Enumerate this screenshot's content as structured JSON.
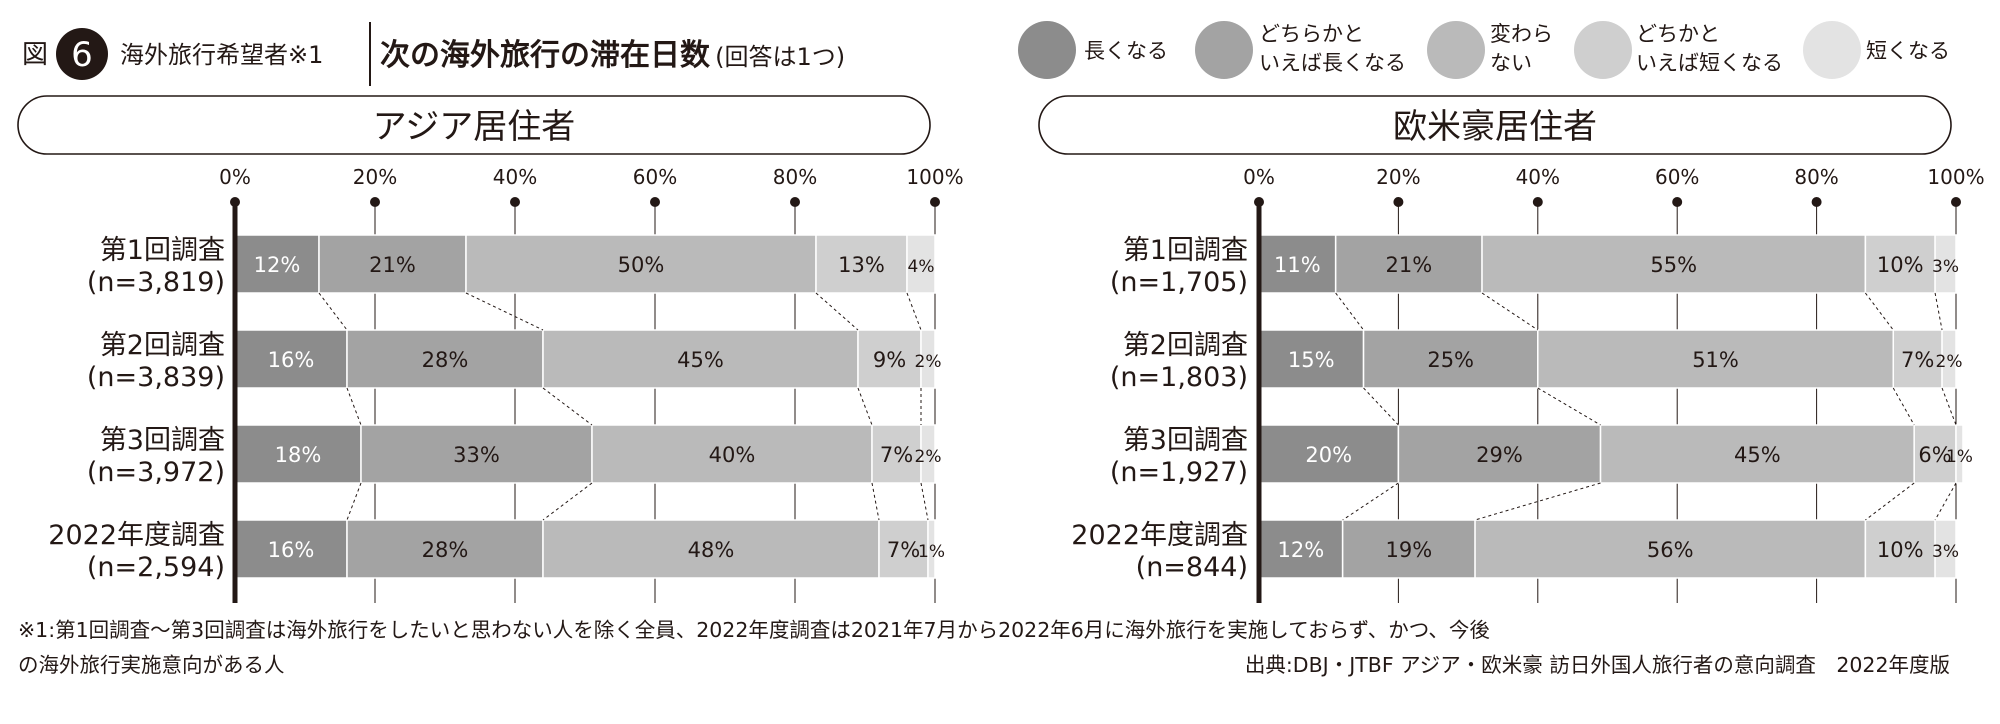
{
  "figure": {
    "label": "図",
    "number": "6",
    "scope": "海外旅行希望者※1",
    "title": "次の海外旅行の滞在日数",
    "title_note": "(回答は1つ)"
  },
  "legend": [
    {
      "name": "長くなる",
      "lines": [
        "長くなる"
      ],
      "color": "#8c8c8c"
    },
    {
      "name": "どちらかといえば長くなる",
      "lines": [
        "どちらかと",
        "いえば長くなる"
      ],
      "color": "#a3a3a3"
    },
    {
      "name": "変わらない",
      "lines": [
        "変わら",
        "ない"
      ],
      "color": "#bababa"
    },
    {
      "name": "どちかといえば短くなる",
      "lines": [
        "どちかと",
        "いえば短くなる"
      ],
      "color": "#cfcfcf"
    },
    {
      "name": "短くなる",
      "lines": [
        "短くなる"
      ],
      "color": "#e3e3e3"
    }
  ],
  "colors": {
    "axis": "#231815",
    "separator": "#ffffff",
    "connector": "#231815",
    "grid": "#231815"
  },
  "chart_data": [
    {
      "type": "bar",
      "orientation": "horizontal",
      "stacked": true,
      "title": "アジア居住者",
      "xlim": [
        0,
        100
      ],
      "ticks": [
        "0%",
        "20%",
        "40%",
        "60%",
        "80%",
        "100%"
      ],
      "tick_values": [
        0,
        20,
        40,
        60,
        80,
        100
      ],
      "categories": [
        {
          "label": "第1回調査",
          "n": "(n=3,819)"
        },
        {
          "label": "第2回調査",
          "n": "(n=3,839)"
        },
        {
          "label": "第3回調査",
          "n": "(n=3,972)"
        },
        {
          "label": "2022年度調査",
          "n": "(n=2,594)"
        }
      ],
      "series": [
        {
          "name": "長くなる",
          "values": [
            12,
            16,
            18,
            16
          ]
        },
        {
          "name": "どちらかといえば長くなる",
          "values": [
            21,
            28,
            33,
            28
          ]
        },
        {
          "name": "変わらない",
          "values": [
            50,
            45,
            40,
            48
          ]
        },
        {
          "name": "どちかといえば短くなる",
          "values": [
            13,
            9,
            7,
            7
          ]
        },
        {
          "name": "短くなる",
          "values": [
            4,
            2,
            2,
            1
          ]
        }
      ]
    },
    {
      "type": "bar",
      "orientation": "horizontal",
      "stacked": true,
      "title": "欧米豪居住者",
      "xlim": [
        0,
        100
      ],
      "ticks": [
        "0%",
        "20%",
        "40%",
        "60%",
        "80%",
        "100%"
      ],
      "tick_values": [
        0,
        20,
        40,
        60,
        80,
        100
      ],
      "categories": [
        {
          "label": "第1回調査",
          "n": "(n=1,705)"
        },
        {
          "label": "第2回調査",
          "n": "(n=1,803)"
        },
        {
          "label": "第3回調査",
          "n": "(n=1,927)"
        },
        {
          "label": "2022年度調査",
          "n": "(n=844)"
        }
      ],
      "series": [
        {
          "name": "長くなる",
          "values": [
            11,
            15,
            20,
            12
          ]
        },
        {
          "name": "どちらかといえば長くなる",
          "values": [
            21,
            25,
            29,
            19
          ]
        },
        {
          "name": "変わらない",
          "values": [
            55,
            51,
            45,
            56
          ]
        },
        {
          "name": "どちかといえば短くなる",
          "values": [
            10,
            7,
            6,
            10
          ]
        },
        {
          "name": "短くなる",
          "values": [
            3,
            2,
            1,
            3
          ]
        }
      ]
    }
  ],
  "footnote": {
    "line1": "※1:第1回調査〜第3回調査は海外旅行をしたいと思わない人を除く全員、2022年度調査は2021年7月から2022年6月に海外旅行を実施しておらず、かつ、今後",
    "line2": "の海外旅行実施意向がある人",
    "source": "出典:DBJ・JTBF アジア・欧米豪 訪日外国人旅行者の意向調査　2022年度版"
  }
}
